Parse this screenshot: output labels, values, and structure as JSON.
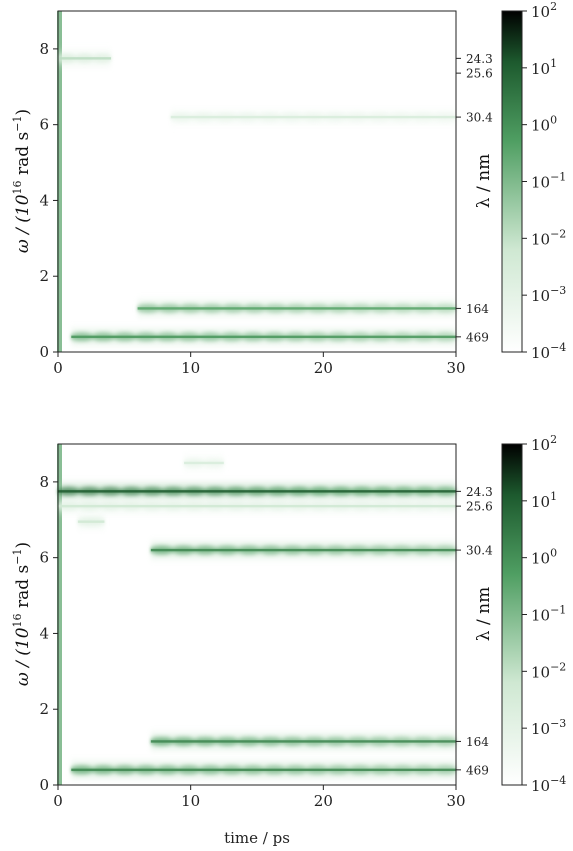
{
  "chart_data": [
    {
      "type": "heatmap",
      "panel": "top",
      "x_range": [
        0,
        30
      ],
      "y_range": [
        0,
        9
      ],
      "x_ticks": [
        "0",
        "10",
        "20",
        "30"
      ],
      "y_ticks": [
        "0",
        "2",
        "4",
        "6",
        "8"
      ],
      "ylabel": "ω / (10^16 rad s^-1)",
      "right_label": "λ / nm",
      "right_ticks": [
        {
          "label": "24.3",
          "omega": 7.75
        },
        {
          "label": "25.6",
          "omega": 7.36
        },
        {
          "label": "30.4",
          "omega": 6.2
        },
        {
          "label": "164",
          "omega": 1.15
        },
        {
          "label": "469",
          "omega": 0.4
        }
      ],
      "colorbar": {
        "scale": "log",
        "min_exp": -4,
        "max_exp": 2,
        "ticks": [
          "10^-4",
          "10^-3",
          "10^-2",
          "10^-1",
          "10^0",
          "10^1",
          "10^2"
        ],
        "color_low": "#ffffff",
        "color_mid": "#2e8b4a",
        "color_high": "#000000"
      },
      "bands": [
        {
          "omega": 0.4,
          "t_start": 1.0,
          "t_end": 30,
          "intensity": 0.55
        },
        {
          "omega": 1.15,
          "t_start": 6.0,
          "t_end": 30,
          "intensity": 0.5
        },
        {
          "omega": 6.2,
          "t_start": 8.5,
          "t_end": 30,
          "intensity": 0.15
        },
        {
          "omega": 7.75,
          "t_start": 0,
          "t_end": 4,
          "intensity": 0.25
        }
      ]
    },
    {
      "type": "heatmap",
      "panel": "bottom",
      "x_range": [
        0,
        30
      ],
      "y_range": [
        0,
        9
      ],
      "x_ticks": [
        "0",
        "10",
        "20",
        "30"
      ],
      "y_ticks": [
        "0",
        "2",
        "4",
        "6",
        "8"
      ],
      "xlabel": "time / ps",
      "ylabel": "ω / (10^16 rad s^-1)",
      "right_label": "λ / nm",
      "right_ticks": [
        {
          "label": "24.3",
          "omega": 7.75
        },
        {
          "label": "25.6",
          "omega": 7.36
        },
        {
          "label": "30.4",
          "omega": 6.2
        },
        {
          "label": "164",
          "omega": 1.15
        },
        {
          "label": "469",
          "omega": 0.4
        }
      ],
      "colorbar": {
        "scale": "log",
        "min_exp": -4,
        "max_exp": 2,
        "ticks": [
          "10^-4",
          "10^-3",
          "10^-2",
          "10^-1",
          "10^0",
          "10^1",
          "10^2"
        ],
        "color_low": "#ffffff",
        "color_mid": "#2e8b4a",
        "color_high": "#000000"
      },
      "bands": [
        {
          "omega": 7.75,
          "t_start": 0,
          "t_end": 30,
          "intensity": 0.75
        },
        {
          "omega": 7.36,
          "t_start": 0,
          "t_end": 30,
          "intensity": 0.2
        },
        {
          "omega": 6.2,
          "t_start": 7.0,
          "t_end": 30,
          "intensity": 0.6
        },
        {
          "omega": 1.15,
          "t_start": 7.0,
          "t_end": 30,
          "intensity": 0.6
        },
        {
          "omega": 0.4,
          "t_start": 1.0,
          "t_end": 30,
          "intensity": 0.6
        },
        {
          "omega": 8.5,
          "t_start": 9.5,
          "t_end": 12.5,
          "intensity": 0.15
        },
        {
          "omega": 6.95,
          "t_start": 1.5,
          "t_end": 3.5,
          "intensity": 0.2
        }
      ]
    }
  ],
  "colorbar_tick_labels": [
    "10",
    "10",
    "10",
    "10",
    "10",
    "10",
    "10"
  ],
  "colorbar_tick_exponents": [
    "−4",
    "−3",
    "−2",
    "−1",
    "0",
    "1",
    "2"
  ],
  "labels": {
    "omega_label_main": "ω / (10",
    "omega_label_sup": "16",
    "omega_label_mid": " rad s",
    "omega_label_sup2": "−1",
    "omega_label_end": ")",
    "lambda_label": "λ / nm",
    "time_label": "time / ps"
  }
}
